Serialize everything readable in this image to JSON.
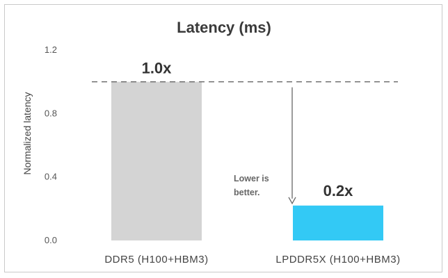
{
  "chart_data": {
    "type": "bar",
    "title": "Latency (ms)",
    "ylabel": "Normalized latency",
    "xlabel": "",
    "categories": [
      "DDR5 (H100+HBM3)",
      "LPDDR5X (H100+HBM3)"
    ],
    "values": [
      1.0,
      0.22
    ],
    "data_labels": [
      "1.0x",
      "0.2x"
    ],
    "ylim": [
      0,
      1.2
    ],
    "yticks": [
      0.0,
      0.4,
      0.8,
      1.2
    ],
    "ytick_labels": [
      "0.0",
      "0.4",
      "0.8",
      "1.2"
    ],
    "reference_line": 1.0,
    "annotation": [
      "Lower is",
      "better."
    ],
    "colors": [
      "#d4d4d4",
      "#33c9f5"
    ],
    "grid": false,
    "legend": "none"
  }
}
